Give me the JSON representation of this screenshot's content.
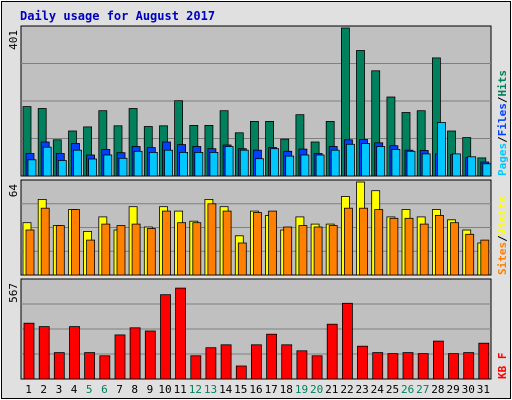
{
  "title": "Daily usage for August 2017",
  "colors": {
    "background": "#ffffff",
    "frame": "#e0e0e0",
    "plot": "#c0c0c0",
    "title": "#0000c0",
    "hits": "#00805c",
    "files": "#0040ff",
    "pages": "#00c8ff",
    "visits": "#ffff00",
    "sites": "#ff8000",
    "kbf": "#ff0000",
    "weekday_label": "#000000",
    "weekend_label": "#008060",
    "axis_text": "#000000"
  },
  "chart_data": [
    {
      "type": "bar",
      "name": "hits-files-pages",
      "legend": [
        {
          "text": "Pages",
          "color": "#00c8ff"
        },
        {
          "text": "/",
          "color": "#000000"
        },
        {
          "text": "Files",
          "color": "#0040ff"
        },
        {
          "text": "/",
          "color": "#000000"
        },
        {
          "text": "Hits",
          "color": "#00805c"
        }
      ],
      "ymax_label": "401",
      "ylim": [
        0,
        401
      ],
      "categories": [
        1,
        2,
        3,
        4,
        5,
        6,
        7,
        8,
        9,
        10,
        11,
        12,
        13,
        14,
        15,
        16,
        17,
        18,
        19,
        20,
        21,
        22,
        23,
        24,
        25,
        26,
        27,
        28,
        29,
        30,
        31
      ],
      "series": [
        {
          "name": "Hits",
          "values": [
            188,
            183,
            98,
            122,
            133,
            177,
            136,
            183,
            134,
            136,
            204,
            137,
            137,
            177,
            117,
            148,
            148,
            100,
            166,
            92,
            148,
            401,
            340,
            285,
            214,
            172,
            177,
            320,
            122,
            104,
            49
          ]
        },
        {
          "name": "Files",
          "values": [
            61,
            92,
            61,
            88,
            57,
            72,
            63,
            80,
            77,
            92,
            85,
            80,
            74,
            84,
            74,
            70,
            77,
            67,
            73,
            61,
            80,
            98,
            99,
            90,
            82,
            70,
            69,
            60,
            58,
            50,
            38
          ]
        },
        {
          "name": "Pages",
          "values": [
            44,
            78,
            42,
            70,
            46,
            57,
            48,
            67,
            64,
            70,
            64,
            64,
            64,
            80,
            70,
            47,
            74,
            54,
            57,
            57,
            70,
            86,
            88,
            80,
            72,
            67,
            60,
            145,
            60,
            52,
            33
          ]
        }
      ]
    },
    {
      "type": "bar",
      "name": "visits-sites",
      "legend": [
        {
          "text": "Sites",
          "color": "#ff8000"
        },
        {
          "text": "/",
          "color": "#000000"
        },
        {
          "text": "Visits",
          "color": "#ffff00"
        }
      ],
      "ymax_label": "64",
      "ylim": [
        0,
        64
      ],
      "categories": [
        1,
        2,
        3,
        4,
        5,
        6,
        7,
        8,
        9,
        10,
        11,
        12,
        13,
        14,
        15,
        16,
        17,
        18,
        19,
        20,
        21,
        22,
        23,
        24,
        25,
        26,
        27,
        28,
        29,
        30,
        31
      ],
      "series": [
        {
          "name": "Visits",
          "values": [
            36,
            52,
            34,
            45,
            30,
            40,
            31,
            47,
            33,
            47,
            44,
            37,
            52,
            47,
            27,
            44,
            41,
            31,
            40,
            35,
            35,
            54,
            64,
            58,
            40,
            45,
            40,
            45,
            38,
            31,
            22
          ]
        },
        {
          "name": "Sites",
          "values": [
            31,
            46,
            34,
            45,
            24,
            35,
            34,
            35,
            32,
            44,
            36,
            36,
            49,
            44,
            22,
            43,
            44,
            33,
            34,
            33,
            34,
            46,
            46,
            45,
            39,
            39,
            35,
            41,
            36,
            28,
            24
          ]
        }
      ]
    },
    {
      "type": "bar",
      "name": "kbf",
      "legend": [
        {
          "text": "KB F",
          "color": "#ff0000"
        }
      ],
      "ymax_label": "567",
      "ylim": [
        0,
        567
      ],
      "categories": [
        1,
        2,
        3,
        4,
        5,
        6,
        7,
        8,
        9,
        10,
        11,
        12,
        13,
        14,
        15,
        16,
        17,
        18,
        19,
        20,
        21,
        22,
        23,
        24,
        25,
        26,
        27,
        28,
        29,
        30,
        31
      ],
      "series": [
        {
          "name": "KB F",
          "values": [
            323,
            303,
            153,
            303,
            153,
            134,
            255,
            296,
            278,
            488,
            526,
            134,
            181,
            198,
            75,
            198,
            259,
            198,
            163,
            134,
            317,
            438,
            190,
            153,
            147,
            153,
            147,
            219,
            147,
            153,
            207
          ]
        }
      ]
    }
  ],
  "x_labels": [
    {
      "text": "1",
      "weekend": false
    },
    {
      "text": "2",
      "weekend": false
    },
    {
      "text": "3",
      "weekend": false
    },
    {
      "text": "4",
      "weekend": false
    },
    {
      "text": "5",
      "weekend": true
    },
    {
      "text": "6",
      "weekend": true
    },
    {
      "text": "7",
      "weekend": false
    },
    {
      "text": "8",
      "weekend": false
    },
    {
      "text": "9",
      "weekend": false
    },
    {
      "text": "10",
      "weekend": false
    },
    {
      "text": "11",
      "weekend": false
    },
    {
      "text": "12",
      "weekend": true
    },
    {
      "text": "13",
      "weekend": true
    },
    {
      "text": "14",
      "weekend": false
    },
    {
      "text": "15",
      "weekend": false
    },
    {
      "text": "16",
      "weekend": false
    },
    {
      "text": "17",
      "weekend": false
    },
    {
      "text": "18",
      "weekend": false
    },
    {
      "text": "19",
      "weekend": true
    },
    {
      "text": "20",
      "weekend": true
    },
    {
      "text": "21",
      "weekend": false
    },
    {
      "text": "22",
      "weekend": false
    },
    {
      "text": "23",
      "weekend": false
    },
    {
      "text": "24",
      "weekend": false
    },
    {
      "text": "25",
      "weekend": false
    },
    {
      "text": "26",
      "weekend": true
    },
    {
      "text": "27",
      "weekend": true
    },
    {
      "text": "28",
      "weekend": false
    },
    {
      "text": "29",
      "weekend": false
    },
    {
      "text": "30",
      "weekend": false
    },
    {
      "text": "31",
      "weekend": false
    }
  ]
}
